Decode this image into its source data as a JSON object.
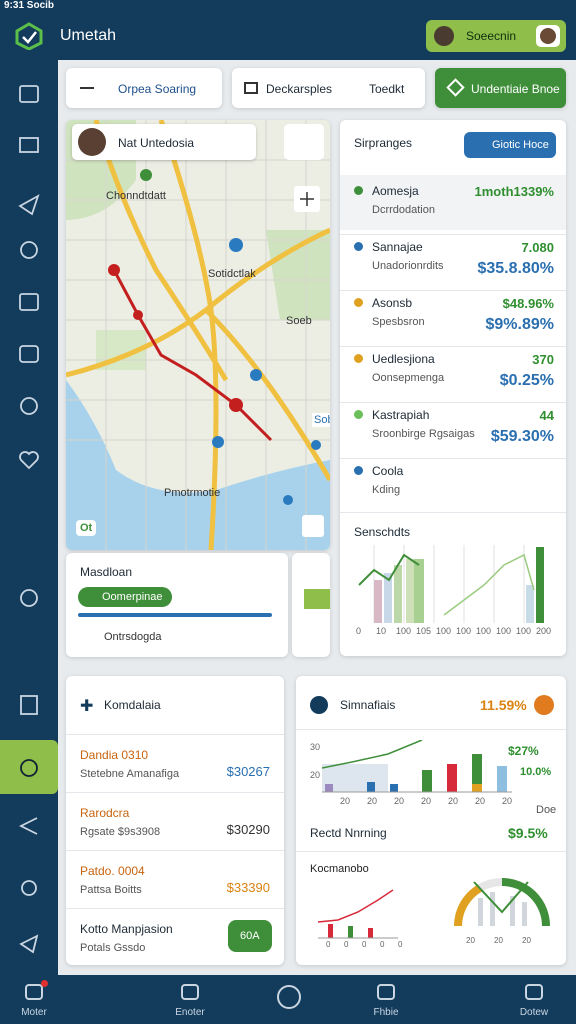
{
  "status_bar": {
    "time": "9:31 Socib"
  },
  "header": {
    "title": "Umetah",
    "user_button": "Soeecnin"
  },
  "toolbar": {
    "search": "Orpea Soaring",
    "filter": "Deckarsples",
    "filter_tag": "Toedkt",
    "action": "Undentiaie Bnoe"
  },
  "map": {
    "location": "Nat Untedosia",
    "labels": [
      "Chonndtdatt",
      "Sotidctlak",
      "Soeb",
      "Pmotrmotie"
    ],
    "badge": "Sob",
    "corner": "Ot"
  },
  "route_card": {
    "title": "Masdloan",
    "pill": "Oomerpinae",
    "item": "Ontrsdogda"
  },
  "places": {
    "title": "Sirpranges",
    "badge": "Giotic Hoce",
    "items": [
      {
        "name": "Aomesja",
        "detail": "Dcrrdodation",
        "value": "1moth1339%"
      },
      {
        "name": "Sannajae",
        "detail": "Unadorionrdits",
        "value": "7.080",
        "change": "$35.8.80%"
      },
      {
        "name": "Asonsb",
        "detail": "Spesbsron",
        "value": "$48.96%",
        "change": "$9%.89%"
      },
      {
        "name": "Uedlesjiona",
        "detail": "Oonsepmenga",
        "value": "370",
        "change": "$0.25%"
      },
      {
        "name": "Kastrapiah",
        "detail": "Sroonbirge Rgsaigas",
        "value": "44",
        "change": "$59.30%"
      },
      {
        "name": "Coola",
        "detail": "Kding"
      }
    ]
  },
  "trends": {
    "title": "Senschdts",
    "axis": [
      "0",
      "10",
      "100",
      "105",
      "100",
      "100",
      "100",
      "100",
      "100",
      "200"
    ]
  },
  "accounts": {
    "title": "Komdalaia",
    "rows": [
      {
        "name": "Dandia 0310",
        "detail": "Stetebne Amanafiga",
        "value": "$30267"
      },
      {
        "name": "Rarodcra",
        "detail": "Rgsate $9s3908",
        "value": "$30290"
      },
      {
        "name": "Patdo. 0004",
        "detail": "Pattsa Boitts",
        "value": "$33390"
      },
      {
        "name": "Kotto Manpjasion",
        "detail": "Potals Gssdo"
      }
    ],
    "button": "60A"
  },
  "summary": {
    "title": "Simnafiais",
    "value": "11.59%",
    "axis_left": [
      "30",
      "20"
    ],
    "x": [
      "20",
      "20",
      "20",
      "20",
      "20",
      "20",
      "20"
    ],
    "legend": [
      "$27%",
      "10.0%"
    ],
    "legend_note": "Doe",
    "row_label": "Rectd Nnrning",
    "row_value": "$9.5%",
    "mini_title": "Kocmanobo",
    "mini_axis": [
      "0",
      "0",
      "0",
      "0",
      "0"
    ],
    "gauge_axis": [
      "20",
      "20",
      "20"
    ]
  },
  "nav": [
    "Moter",
    "Enoter",
    "Fhbie",
    "Dotew"
  ]
}
